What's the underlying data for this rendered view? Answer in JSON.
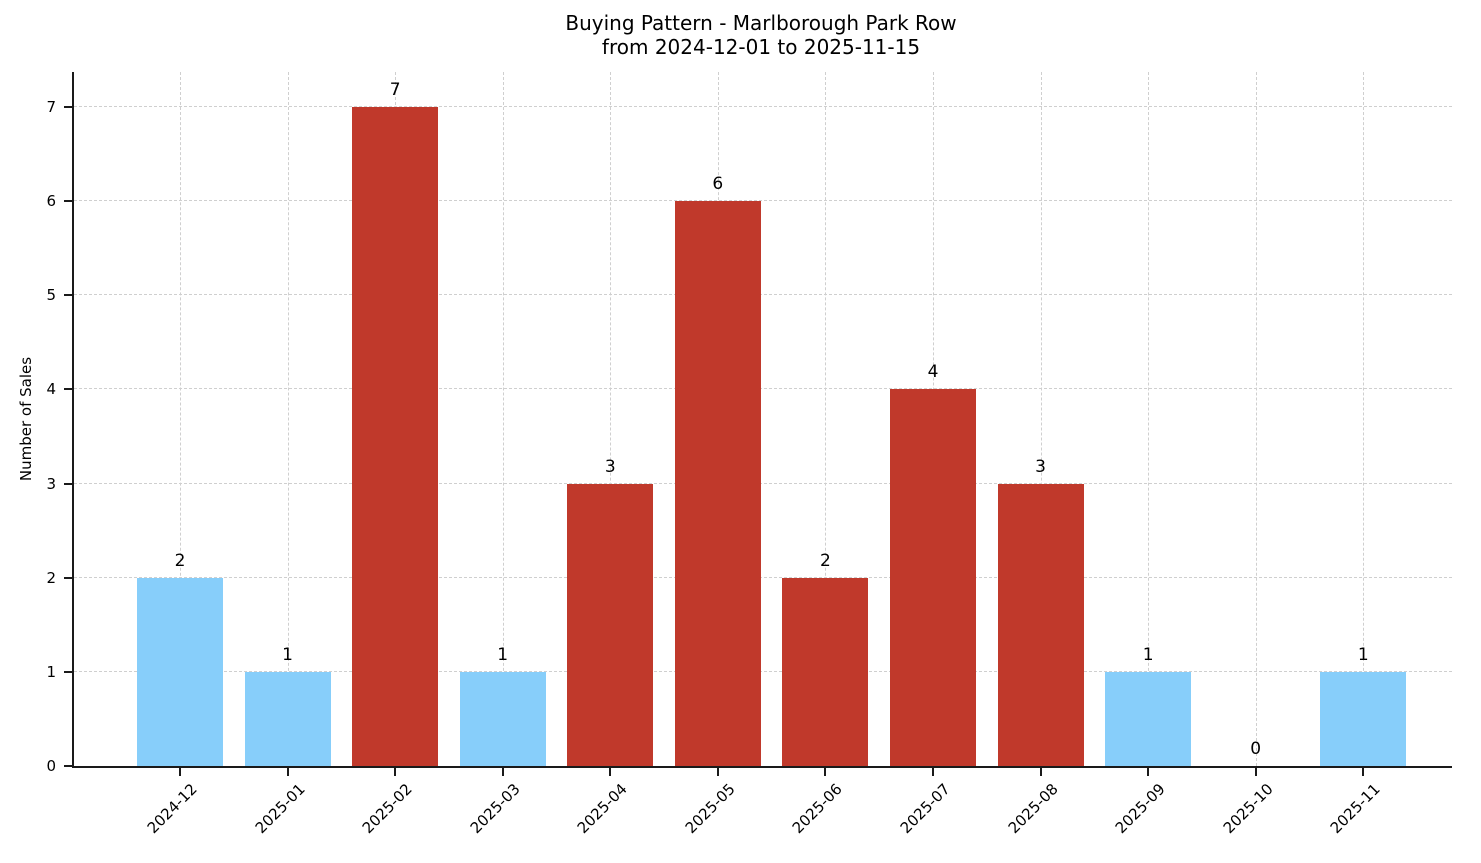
{
  "title": {
    "line1": "Buying Pattern - Marlborough Park Row",
    "line2": "from 2024-12-01 to 2025-11-15"
  },
  "ylabel": "Number of Sales",
  "colors": {
    "bar_blue": "#87CEFA",
    "bar_red": "#C0392B",
    "grid": "#CFCFCF",
    "axis": "#1A1A1A",
    "background": "#FFFFFF",
    "text": "#000000"
  },
  "chart_data": {
    "type": "bar",
    "title": "Buying Pattern - Marlborough Park Row from 2024-12-01 to 2025-11-15",
    "xlabel": "",
    "ylabel": "Number of Sales",
    "categories": [
      "2024-12",
      "2025-01",
      "2025-02",
      "2025-03",
      "2025-04",
      "2025-05",
      "2025-06",
      "2025-07",
      "2025-08",
      "2025-09",
      "2025-10",
      "2025-11"
    ],
    "values": [
      2,
      1,
      7,
      1,
      3,
      6,
      2,
      4,
      3,
      1,
      0,
      1
    ],
    "bar_colors": [
      "#87CEFA",
      "#87CEFA",
      "#C0392B",
      "#87CEFA",
      "#C0392B",
      "#C0392B",
      "#C0392B",
      "#C0392B",
      "#C0392B",
      "#87CEFA",
      "#87CEFA",
      "#87CEFA"
    ],
    "value_labels": [
      "2",
      "1",
      "7",
      "1",
      "3",
      "6",
      "2",
      "4",
      "3",
      "1",
      "0",
      "1"
    ],
    "yticks": [
      0,
      1,
      2,
      3,
      4,
      5,
      6,
      7
    ],
    "ylim": [
      0,
      7.37
    ],
    "grid": true,
    "grid_style": "dashed",
    "legend": "none"
  }
}
